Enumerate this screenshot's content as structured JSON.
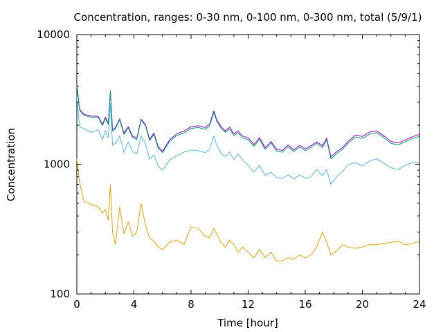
{
  "chart_data": {
    "type": "line",
    "title": "Concentration, ranges: 0-30 nm, 0-100 nm, 0-300 nm, total (5/9/1)",
    "xlabel": "Time [hour]",
    "ylabel": "Concentration",
    "xlim": [
      0,
      24
    ],
    "ylim": [
      100,
      10000
    ],
    "yscale": "log",
    "xticks": [
      "0",
      "4",
      "8",
      "12",
      "16",
      "20",
      "24"
    ],
    "yticks": [
      "100",
      "1000",
      "10000"
    ],
    "grid": false,
    "series": [
      {
        "color": "#9400d3",
        "x": [
          0,
          0.2,
          0.5,
          1,
          1.5,
          1.8,
          2,
          2.2,
          2.35,
          2.5,
          2.7,
          3,
          3.3,
          3.6,
          3.9,
          4.2,
          4.5,
          4.8,
          5.1,
          5.4,
          5.7,
          6,
          6.5,
          7,
          7.5,
          8,
          8.5,
          9,
          9.3,
          9.6,
          9.8,
          10.1,
          10.4,
          10.7,
          11,
          11.3,
          11.6,
          12,
          12.4,
          12.8,
          13.2,
          13.6,
          14,
          14.4,
          14.8,
          15.2,
          15.6,
          16,
          16.4,
          16.8,
          17.2,
          17.5,
          17.8,
          18.2,
          18.6,
          19,
          19.5,
          20,
          20.5,
          21,
          21.5,
          22,
          22.5,
          23,
          23.5,
          24
        ],
        "y": [
          4150,
          2650,
          2430,
          2360,
          2340,
          2030,
          2310,
          2070,
          3700,
          1840,
          1920,
          2240,
          1740,
          1950,
          1650,
          1590,
          2230,
          2030,
          1560,
          1740,
          1370,
          1260,
          1540,
          1720,
          1800,
          1950,
          1980,
          1920,
          2040,
          2580,
          2210,
          1950,
          1810,
          1930,
          1720,
          1800,
          1650,
          1600,
          1420,
          1600,
          1340,
          1500,
          1300,
          1280,
          1410,
          1290,
          1400,
          1310,
          1390,
          1490,
          1390,
          1590,
          1140,
          1250,
          1340,
          1500,
          1680,
          1640,
          1770,
          1810,
          1660,
          1500,
          1460,
          1540,
          1630,
          1700
        ]
      },
      {
        "color": "#009e73",
        "x": [
          0,
          0.2,
          0.5,
          1,
          1.5,
          1.8,
          2,
          2.2,
          2.35,
          2.5,
          2.7,
          3,
          3.3,
          3.6,
          3.9,
          4.2,
          4.5,
          4.8,
          5.1,
          5.4,
          5.7,
          6,
          6.5,
          7,
          7.5,
          8,
          8.5,
          9,
          9.3,
          9.6,
          9.8,
          10.1,
          10.4,
          10.7,
          11,
          11.3,
          11.6,
          12,
          12.4,
          12.8,
          13.2,
          13.6,
          14,
          14.4,
          14.8,
          15.2,
          15.6,
          16,
          16.4,
          16.8,
          17.2,
          17.5,
          17.8,
          18.2,
          18.6,
          19,
          19.5,
          20,
          20.5,
          21,
          21.5,
          22,
          22.5,
          23,
          23.5,
          24
        ],
        "y": [
          4050,
          2600,
          2380,
          2310,
          2290,
          1990,
          2260,
          2030,
          3650,
          1800,
          1880,
          2200,
          1700,
          1910,
          1610,
          1550,
          2190,
          1990,
          1520,
          1700,
          1330,
          1230,
          1500,
          1670,
          1740,
          1890,
          1920,
          1860,
          1980,
          2510,
          2150,
          1900,
          1760,
          1880,
          1670,
          1750,
          1600,
          1550,
          1380,
          1550,
          1300,
          1460,
          1260,
          1240,
          1370,
          1250,
          1360,
          1270,
          1350,
          1450,
          1350,
          1540,
          1100,
          1210,
          1300,
          1450,
          1620,
          1580,
          1710,
          1750,
          1610,
          1450,
          1410,
          1490,
          1580,
          1640
        ]
      },
      {
        "color": "#56b4e9",
        "x": [
          0,
          0.2,
          0.5,
          1,
          1.5,
          1.8,
          2,
          2.2,
          2.35,
          2.5,
          2.7,
          3,
          3.3,
          3.6,
          3.9,
          4.2,
          4.5,
          4.8,
          5.1,
          5.4,
          5.7,
          6,
          6.5,
          7,
          7.5,
          8,
          8.5,
          9,
          9.3,
          9.6,
          9.8,
          10.1,
          10.4,
          10.7,
          11,
          11.3,
          11.6,
          12,
          12.4,
          12.8,
          13.2,
          13.6,
          14,
          14.4,
          14.8,
          15.2,
          15.6,
          16,
          16.4,
          16.8,
          17.2,
          17.5,
          17.8,
          18.2,
          18.6,
          19,
          19.5,
          20,
          20.5,
          21,
          21.5,
          22,
          22.5,
          23,
          23.5,
          24
        ],
        "y": [
          3300,
          1950,
          1880,
          1760,
          1840,
          1550,
          1820,
          1600,
          2950,
          1400,
          1460,
          1650,
          1230,
          1490,
          1250,
          1200,
          1650,
          1450,
          1100,
          1180,
          970,
          900,
          1080,
          1160,
          1240,
          1290,
          1270,
          1230,
          1300,
          1650,
          1400,
          1220,
          1150,
          1240,
          1090,
          1200,
          1080,
          980,
          870,
          980,
          820,
          870,
          790,
          780,
          830,
          770,
          830,
          780,
          800,
          910,
          820,
          910,
          700,
          800,
          880,
          990,
          1030,
          970,
          1060,
          1100,
          1020,
          940,
          910,
          980,
          1030,
          1040
        ]
      },
      {
        "color": "#e69f00",
        "x": [
          0,
          0.2,
          0.5,
          1,
          1.5,
          1.8,
          2,
          2.2,
          2.35,
          2.5,
          2.7,
          3,
          3.3,
          3.6,
          3.9,
          4.2,
          4.5,
          4.8,
          5.1,
          5.4,
          5.7,
          6,
          6.5,
          7,
          7.5,
          8,
          8.5,
          9,
          9.3,
          9.6,
          9.8,
          10.1,
          10.4,
          10.7,
          11,
          11.3,
          11.6,
          12,
          12.4,
          12.8,
          13.2,
          13.6,
          14,
          14.4,
          14.8,
          15.2,
          15.6,
          16,
          16.4,
          16.8,
          17.2,
          17.5,
          17.8,
          18.2,
          18.6,
          19,
          19.5,
          20,
          20.5,
          21,
          21.5,
          22,
          22.5,
          23,
          23.5,
          24
        ],
        "y": [
          1100,
          720,
          520,
          490,
          470,
          420,
          450,
          370,
          690,
          300,
          240,
          470,
          290,
          360,
          280,
          300,
          500,
          340,
          270,
          255,
          230,
          220,
          250,
          260,
          240,
          330,
          320,
          280,
          270,
          320,
          290,
          250,
          230,
          260,
          240,
          210,
          230,
          210,
          190,
          220,
          190,
          210,
          180,
          180,
          190,
          185,
          200,
          190,
          200,
          230,
          300,
          250,
          200,
          215,
          240,
          230,
          225,
          230,
          240,
          240,
          245,
          250,
          255,
          240,
          245,
          255
        ]
      }
    ]
  }
}
